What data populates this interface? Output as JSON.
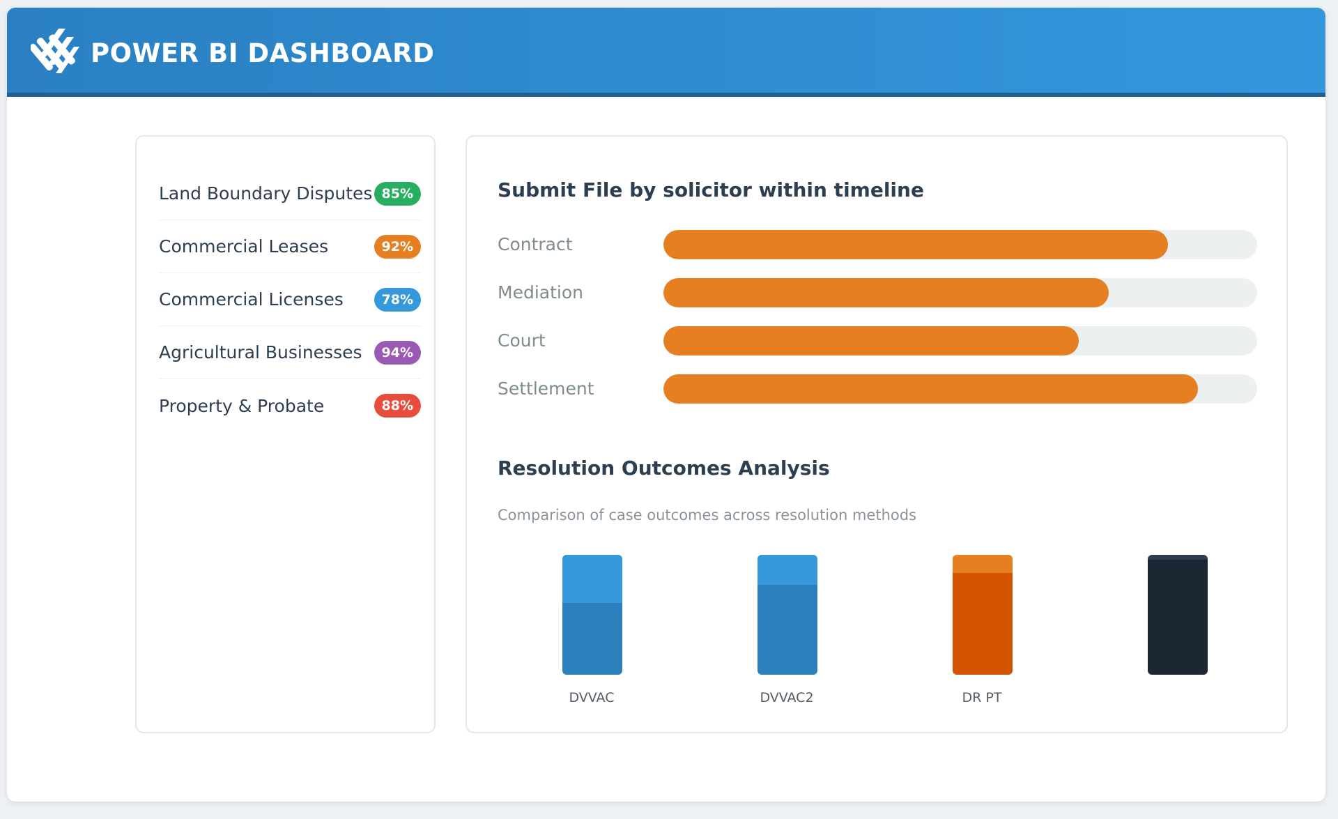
{
  "header": {
    "title": "POWER BI DASHBOARD",
    "logo_icon": "stripes-logo-icon"
  },
  "categories": [
    {
      "label": "Land Boundary Disputes",
      "badge": "85%",
      "color": "#27ae60"
    },
    {
      "label": "Commercial Leases",
      "badge": "92%",
      "color": "#e67e22"
    },
    {
      "label": "Commercial Licenses",
      "badge": "78%",
      "color": "#3498db"
    },
    {
      "label": "Agricultural Businesses",
      "badge": "94%",
      "color": "#9b59b6"
    },
    {
      "label": "Property & Probate",
      "badge": "88%",
      "color": "#e74c3c"
    }
  ],
  "timeline": {
    "title": "Submit File by solicitor within timeline",
    "fill_color": "#e67e22",
    "track_color": "#ecf0f1",
    "items": [
      {
        "label": "Contract",
        "value": 85
      },
      {
        "label": "Mediation",
        "value": 75
      },
      {
        "label": "Court",
        "value": 70
      },
      {
        "label": "Settlement",
        "value": 90
      }
    ]
  },
  "outcomes": {
    "title": "Resolution Outcomes Analysis",
    "subtitle": "Comparison of case outcomes across resolution methods",
    "bars": [
      {
        "label": "DVVAC",
        "top_share": 0.4,
        "top_color": "#3498db",
        "bottom_color": "#2a7fbc"
      },
      {
        "label": "DVVAC2",
        "top_share": 0.25,
        "top_color": "#3498db",
        "bottom_color": "#2a7fbc"
      },
      {
        "label": "DR PT",
        "top_share": 0.15,
        "top_color": "#e67e22",
        "bottom_color": "#d35400"
      },
      {
        "label": "",
        "top_share": 0.04,
        "top_color": "#2c3e50",
        "bottom_color": "#1c2733"
      }
    ]
  }
}
